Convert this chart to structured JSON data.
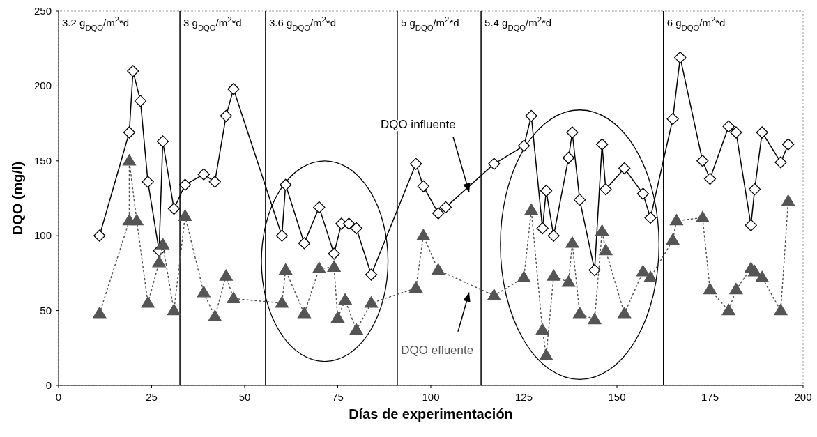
{
  "chart_data": {
    "type": "line",
    "xlabel": "Días de experimentación",
    "ylabel": "DQO (mg/l)",
    "xlim": [
      0,
      200
    ],
    "xticks": [
      0,
      25,
      50,
      75,
      100,
      125,
      150,
      175,
      200
    ],
    "ylim": [
      0,
      250
    ],
    "yticks": [
      0,
      50,
      100,
      150,
      200,
      250
    ],
    "grid": false,
    "series": [
      {
        "name": "DQO influente",
        "color": "#000000",
        "marker": "diamond",
        "line_style": "solid",
        "x": [
          11,
          19,
          20,
          22,
          24,
          27,
          28,
          31,
          34,
          39,
          42,
          45,
          47,
          60,
          61,
          66,
          70,
          74,
          76,
          78,
          80,
          84,
          96,
          98,
          102,
          104,
          117,
          125,
          127,
          130,
          131,
          133,
          137,
          138,
          140,
          144,
          146,
          147,
          152,
          157,
          159,
          165,
          167,
          173,
          175,
          180,
          182,
          186,
          187,
          189,
          194,
          196
        ],
        "values": [
          100,
          169,
          210,
          190,
          136,
          90,
          163,
          118,
          134,
          141,
          136,
          180,
          198,
          100,
          134,
          95,
          119,
          88,
          108,
          108,
          105,
          74,
          148,
          133,
          115,
          119,
          148,
          160,
          180,
          105,
          130,
          100,
          152,
          169,
          124,
          77,
          161,
          131,
          145,
          128,
          112,
          178,
          219,
          150,
          138,
          173,
          169,
          107,
          131,
          169,
          149,
          161
        ]
      },
      {
        "name": "DQO efluente",
        "color": "#555555",
        "marker": "triangle",
        "line_style": "dotted",
        "x": [
          11,
          19,
          19,
          21,
          24,
          27,
          28,
          31,
          34,
          39,
          42,
          45,
          47,
          60,
          61,
          66,
          70,
          74,
          75,
          77,
          80,
          84,
          96,
          98,
          102,
          117,
          125,
          127,
          130,
          131,
          133,
          137,
          138,
          140,
          144,
          146,
          147,
          152,
          157,
          159,
          165,
          166,
          173,
          175,
          180,
          182,
          186,
          187,
          189,
          194,
          196
        ],
        "values": [
          48,
          110,
          150,
          110,
          55,
          82,
          94,
          50,
          113,
          62,
          46,
          73,
          58,
          55,
          77,
          48,
          78,
          79,
          45,
          57,
          37,
          55,
          65,
          100,
          77,
          60,
          72,
          117,
          37,
          20,
          73,
          69,
          95,
          48,
          44,
          103,
          90,
          48,
          76,
          72,
          97,
          110,
          112,
          64,
          50,
          64,
          78,
          76,
          72,
          50,
          123
        ]
      }
    ],
    "annotations": [
      "3.2 g$_{DQO}$/m$^{2}$*d"
    ],
    "ref_lines": [
      {
        "axis": "x",
        "value": 32.6,
        "label": "3 g$_{DQO}$/m$^{2}$*d"
      },
      {
        "axis": "x",
        "value": 55.6,
        "label": "3.6 g$_{DQO}$/m$^{2}$*d"
      },
      {
        "axis": "x",
        "value": 91,
        "label": "5 g$_{DQO}$/m$^{2}$*d"
      },
      {
        "axis": "x",
        "value": 113.5,
        "label": "5.4 g$_{DQO}$/m$^{2}$*d"
      },
      {
        "axis": "x",
        "value": 162.5,
        "label": "6 g$_{DQO}$/m$^{2}$*d"
      }
    ]
  }
}
